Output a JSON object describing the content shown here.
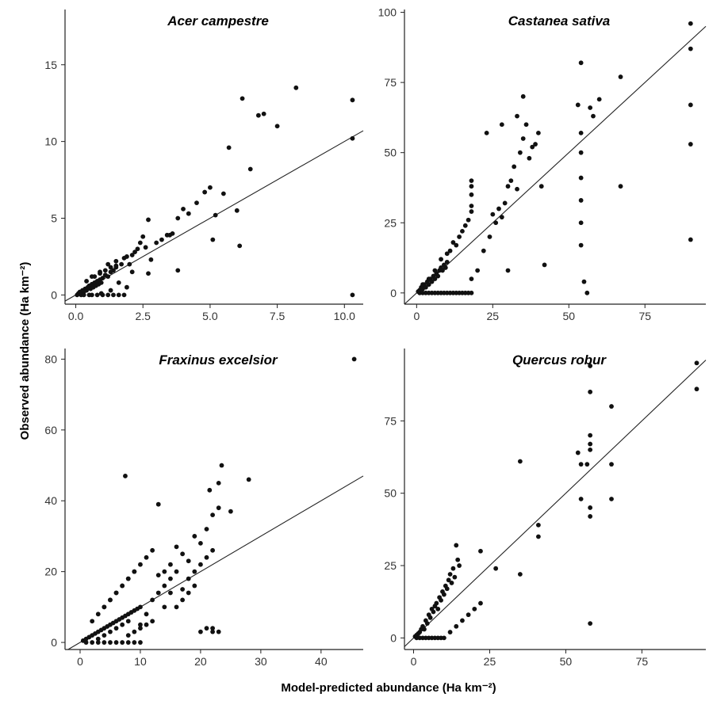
{
  "figure": {
    "ylabel": "Observed abundance (Ha km⁻²)",
    "xlabel": "Model-predicted abundance (Ha km⁻²)"
  },
  "chart_data": [
    {
      "type": "scatter",
      "title": "Acer campestre",
      "xlim": [
        -0.4,
        10.7
      ],
      "ylim": [
        -0.6,
        18.6
      ],
      "xticks": [
        0,
        2.5,
        5,
        7.5,
        10
      ],
      "xtick_labels": [
        "0.0",
        "2.5",
        "5.0",
        "7.5",
        "10.0"
      ],
      "yticks": [
        0,
        5,
        10,
        15
      ],
      "ytick_labels": [
        "0",
        "5",
        "10",
        "15"
      ],
      "line": {
        "slope": 1.0,
        "intercept": 0
      },
      "x": [
        0.05,
        0.1,
        0.15,
        0.2,
        0.25,
        0.3,
        0.35,
        0.4,
        0.45,
        0.5,
        0.55,
        0.6,
        0.65,
        0.7,
        0.75,
        0.8,
        0.85,
        0.9,
        0.95,
        1.0,
        1.1,
        1.2,
        1.3,
        1.4,
        1.5,
        0.2,
        0.3,
        0.5,
        0.6,
        0.8,
        1.0,
        1.2,
        1.4,
        1.6,
        1.8,
        0.4,
        0.7,
        0.9,
        1.1,
        1.3,
        1.5,
        1.7,
        1.9,
        2.0,
        2.2,
        2.4,
        2.6,
        2.8,
        3.0,
        0.6,
        0.9,
        1.2,
        1.5,
        1.8,
        2.1,
        2.3,
        2.5,
        2.7,
        3.2,
        3.4,
        3.6,
        3.8,
        4.0,
        4.2,
        4.5,
        4.8,
        5.0,
        5.2,
        5.5,
        5.7,
        6.0,
        6.2,
        6.5,
        6.8,
        7.0,
        7.5,
        8.2,
        10.3,
        10.3,
        10.3,
        6.1,
        5.1,
        3.8,
        1.9,
        1.6,
        1.3,
        0.95,
        2.1,
        2.7,
        3.5
      ],
      "y": [
        0,
        0.1,
        0.2,
        0.1,
        0.3,
        0.2,
        0.4,
        0.3,
        0.5,
        0.6,
        0.4,
        0.7,
        0.5,
        0.8,
        0.6,
        0.9,
        0.7,
        1.0,
        0.8,
        1.1,
        1.3,
        1.2,
        1.5,
        1.6,
        1.9,
        0,
        0,
        0,
        0,
        0,
        0,
        0,
        0,
        0,
        0,
        0.9,
        1.2,
        1.4,
        1.6,
        1.8,
        2.2,
        2.0,
        2.5,
        2.0,
        2.8,
        3.4,
        3.1,
        2.3,
        3.4,
        1.2,
        1.5,
        2.0,
        1.8,
        2.4,
        2.6,
        3.0,
        3.8,
        4.9,
        3.6,
        3.9,
        4.0,
        5.0,
        5.6,
        5.3,
        6.0,
        6.7,
        7.0,
        5.2,
        6.6,
        9.6,
        5.5,
        12.8,
        8.2,
        11.7,
        11.8,
        11.0,
        13.5,
        12.7,
        10.2,
        0,
        3.2,
        3.6,
        1.6,
        0.5,
        0.8,
        0.3,
        0.1,
        1.5,
        1.4,
        3.9
      ]
    },
    {
      "type": "scatter",
      "title": "Castanea sativa",
      "xlim": [
        -4,
        95
      ],
      "ylim": [
        -4,
        101
      ],
      "xticks": [
        0,
        25,
        50,
        75
      ],
      "xtick_labels": [
        "0",
        "25",
        "50",
        "75"
      ],
      "yticks": [
        0,
        25,
        50,
        75,
        100
      ],
      "ytick_labels": [
        "0",
        "25",
        "50",
        "75",
        "100"
      ],
      "line": {
        "slope": 1.0,
        "intercept": 0
      },
      "x": [
        0.5,
        1,
        1.5,
        2,
        2.5,
        3,
        3.5,
        4,
        4.5,
        5,
        5.5,
        6,
        6.5,
        7,
        7.5,
        8,
        8.5,
        9,
        9.5,
        10,
        1,
        2,
        3,
        4,
        5,
        6,
        7,
        8,
        9,
        10,
        11,
        12,
        13,
        14,
        15,
        16,
        17,
        18,
        2,
        4,
        6,
        8,
        10,
        12,
        14,
        16,
        18,
        11,
        13,
        15,
        17,
        18,
        18,
        18,
        18,
        18,
        20,
        22,
        24,
        25,
        26,
        27,
        28,
        29,
        30,
        31,
        32,
        33,
        34,
        35,
        36,
        37,
        38,
        39,
        40,
        41,
        42,
        53,
        54,
        54,
        54,
        54,
        54,
        54,
        54,
        55,
        56,
        57,
        58,
        60,
        67,
        67,
        90,
        90,
        90,
        90,
        90,
        30,
        28,
        33,
        23,
        35
      ],
      "y": [
        0.5,
        1,
        2,
        1.5,
        3,
        2,
        4,
        3,
        5,
        4,
        6,
        5,
        7,
        6,
        8,
        9,
        8,
        10,
        9,
        11,
        0,
        0,
        0,
        0,
        0,
        0,
        0,
        0,
        0,
        0,
        0,
        0,
        0,
        0,
        0,
        0,
        0,
        0,
        3,
        5,
        8,
        12,
        14,
        18,
        20,
        24,
        29,
        15,
        17,
        22,
        26,
        31,
        35,
        38,
        40,
        5,
        8,
        15,
        20,
        28,
        25,
        30,
        27,
        32,
        38,
        40,
        45,
        37,
        50,
        55,
        60,
        48,
        52,
        53,
        57,
        38,
        10,
        67,
        82,
        57,
        50,
        41,
        33,
        25,
        17,
        4,
        0,
        66,
        63,
        69,
        38,
        77,
        96,
        87,
        67,
        53,
        19,
        8,
        60,
        63,
        57,
        70
      ]
    },
    {
      "type": "scatter",
      "title": "Fraxinus excelsior",
      "xlim": [
        -2.5,
        47
      ],
      "ylim": [
        -2,
        83
      ],
      "xticks": [
        0,
        10,
        20,
        30,
        40
      ],
      "xtick_labels": [
        "0",
        "10",
        "20",
        "30",
        "40"
      ],
      "yticks": [
        0,
        20,
        40,
        60,
        80
      ],
      "ytick_labels": [
        "0",
        "20",
        "40",
        "60",
        "80"
      ],
      "line": {
        "slope": 1.0,
        "intercept": 0
      },
      "x": [
        0.5,
        1,
        1.5,
        2,
        2.5,
        3,
        3.5,
        4,
        4.5,
        5,
        5.5,
        6,
        6.5,
        7,
        7.5,
        8,
        8.5,
        9,
        9.5,
        10,
        1,
        2,
        3,
        4,
        5,
        6,
        7,
        8,
        9,
        10,
        2,
        3,
        4,
        5,
        6,
        7,
        8,
        9,
        3,
        4,
        5,
        6,
        7,
        8,
        4,
        5,
        6,
        7,
        8,
        9,
        10,
        11,
        12,
        13,
        14,
        15,
        16,
        17,
        18,
        19,
        20,
        21,
        22,
        23,
        10,
        11,
        12,
        13,
        14,
        15,
        16,
        17,
        18,
        19,
        20,
        21,
        22,
        7.5,
        13,
        21.5,
        22,
        23,
        23.5,
        25,
        28,
        45.5,
        20,
        21,
        22,
        23,
        16,
        17,
        18,
        19,
        8,
        9,
        10,
        11,
        12,
        14,
        15
      ],
      "y": [
        0.5,
        1,
        1.5,
        2,
        2.5,
        3,
        3.5,
        4,
        4.5,
        5,
        5.5,
        6,
        6.5,
        7,
        7.5,
        8,
        8.5,
        9,
        9.5,
        10,
        0,
        0,
        0,
        0,
        0,
        0,
        0,
        0,
        0,
        0,
        6,
        8,
        10,
        12,
        14,
        16,
        18,
        20,
        1,
        2,
        3,
        4,
        5,
        6,
        10,
        12,
        14,
        16,
        18,
        20,
        22,
        24,
        26,
        19,
        20,
        22,
        27,
        25,
        23,
        30,
        28,
        32,
        36,
        38,
        5,
        8,
        12,
        14,
        16,
        18,
        20,
        15,
        18,
        20,
        22,
        24,
        26,
        47,
        39,
        43,
        4,
        45,
        50,
        37,
        46,
        80,
        3,
        4,
        3,
        3,
        10,
        12,
        14,
        16,
        2,
        3,
        4,
        5,
        6,
        10,
        14
      ]
    },
    {
      "type": "scatter",
      "title": "Quercus robur",
      "xlim": [
        -3,
        96
      ],
      "ylim": [
        -4,
        100
      ],
      "xticks": [
        0,
        25,
        50,
        75
      ],
      "xtick_labels": [
        "0",
        "25",
        "50",
        "75"
      ],
      "yticks": [
        0,
        25,
        50,
        75
      ],
      "ytick_labels": [
        "0",
        "25",
        "50",
        "75"
      ],
      "line": {
        "slope": 1.0,
        "intercept": 0
      },
      "x": [
        0.5,
        1,
        1.5,
        2,
        2.5,
        3,
        3.5,
        4,
        4.5,
        5,
        5.5,
        6,
        6.5,
        7,
        7.5,
        8,
        8.5,
        9,
        9.5,
        10,
        10.5,
        11,
        11.5,
        12,
        12.5,
        13,
        13.5,
        14,
        14.5,
        15,
        1,
        2,
        3,
        4,
        5,
        6,
        7,
        8,
        9,
        10,
        12,
        14,
        16,
        18,
        20,
        22,
        22,
        27,
        35,
        35,
        41,
        41,
        54,
        55,
        55,
        57,
        58,
        58,
        58,
        58,
        58,
        58,
        58,
        58,
        65,
        65,
        65,
        93,
        93
      ],
      "y": [
        0.5,
        1,
        1.5,
        2,
        3,
        4,
        3,
        6,
        5,
        8,
        7,
        10,
        9,
        11,
        12,
        10,
        14,
        13,
        16,
        15,
        18,
        17,
        20,
        22,
        19,
        24,
        21,
        32,
        27,
        25,
        0,
        0,
        0,
        0,
        0,
        0,
        0,
        0,
        0,
        0,
        2,
        4,
        6,
        8,
        10,
        12,
        30,
        24,
        22,
        61,
        39,
        35,
        64,
        60,
        48,
        60,
        42,
        45,
        65,
        67,
        70,
        85,
        94,
        5,
        48,
        60,
        80,
        95,
        86
      ]
    }
  ]
}
